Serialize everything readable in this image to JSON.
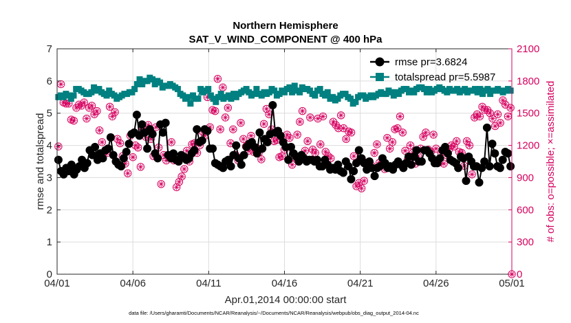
{
  "chart_data": {
    "type": "line",
    "title": "Northern Hemisphere",
    "subtitle": "SAT_V_WIND_COMPONENT @ 400 hPa",
    "xlabel": "Apr.01,2014 00:00:00 start",
    "ylabel_left": "rmse and totalspread",
    "ylabel_right": "# of obs: o=possible; ×=assimilated",
    "footer": "data file: /Users/gharamti/Documents/NCAR/Reanalysis/~/Documents/NCAR/Reanalysis/webpub/obs_diag_output_2014-04.nc",
    "x_range": [
      0,
      30
    ],
    "x_tick_values": [
      0,
      5,
      10,
      15,
      20,
      25,
      30
    ],
    "x_tick_labels": [
      "04/01",
      "04/06",
      "04/11",
      "04/16",
      "04/21",
      "04/26",
      "05/01"
    ],
    "ylim_left": [
      0,
      7
    ],
    "y_left_ticks": [
      0,
      1,
      2,
      3,
      4,
      5,
      6,
      7
    ],
    "ylim_right": [
      0,
      2100
    ],
    "y_right_ticks": [
      0,
      300,
      600,
      900,
      1200,
      1500,
      1800,
      2100
    ],
    "grid": true,
    "legend_position": "top-right",
    "colors": {
      "rmse": "#000000",
      "totalspread": "#008080",
      "obs": "#d6005f",
      "axis": "#262626",
      "grid": "#dcdcdc"
    },
    "series": [
      {
        "name": "rmse pr=3.6824",
        "axis": "left",
        "values": [
          3.55,
          3.2,
          3.1,
          3.3,
          3.2,
          3.4,
          3.1,
          3.25,
          3.35,
          3.55,
          3.3,
          3.45,
          3.85,
          3.7,
          3.95,
          3.55,
          3.75,
          3.6,
          3.85,
          3.9,
          4.25,
          3.7,
          3.5,
          3.4,
          3.35,
          3.6,
          3.8,
          4.05,
          4.35,
          4.4,
          4.95,
          4.3,
          4.65,
          4.4,
          3.9,
          4.5,
          4.35,
          3.75,
          3.6,
          4.65,
          4.4,
          4.7,
          3.7,
          3.6,
          3.75,
          3.55,
          3.5,
          3.7,
          3.65,
          3.55,
          3.6,
          3.75,
          3.85,
          4.5,
          4.1,
          4.15,
          4.5,
          4.45,
          3.9,
          3.9,
          3.45,
          3.4,
          3.35,
          3.3,
          3.5,
          3.55,
          3.35,
          3.7,
          4.0,
          3.6,
          3.4,
          3.7,
          3.95,
          4.05,
          4.1,
          3.95,
          3.75,
          4.4,
          3.9,
          4.2,
          4.1,
          4.35,
          5.25,
          4.4,
          4.45,
          4.3,
          4.1,
          3.95,
          3.55,
          3.95,
          3.75,
          3.65,
          3.5,
          3.7,
          3.6,
          3.5,
          3.55,
          3.55,
          3.5,
          3.55,
          3.35,
          3.35,
          3.55,
          3.4,
          3.25,
          3.3,
          3.25,
          3.4,
          3.2,
          3.15,
          3.5,
          3.35,
          2.95,
          3.2,
          3.45,
          3.85,
          3.6,
          3.45,
          3.25,
          3.5,
          3.3,
          3.05,
          3.3,
          3.35,
          3.6,
          3.45,
          3.3,
          3.35,
          3.25,
          3.4,
          3.5,
          3.4,
          3.3,
          3.45,
          3.65,
          3.4,
          3.65,
          3.85,
          3.5,
          3.5,
          3.85,
          3.85,
          3.75,
          3.6,
          3.45,
          3.45,
          3.6,
          3.85,
          3.95,
          3.75,
          3.55,
          3.5,
          3.45,
          3.3,
          3.65,
          3.6,
          2.9,
          3.65,
          3.5,
          3.35,
          3.35,
          2.85,
          3.3,
          3.5,
          4.55,
          3.35,
          4.05,
          3.75,
          3.35,
          3.3,
          3.55,
          3.8,
          3.75,
          3.35
        ]
      },
      {
        "name": "totalspread pr=5.5987",
        "axis": "left",
        "values": [
          5.5,
          5.55,
          5.5,
          5.6,
          5.55,
          5.45,
          5.55,
          5.75,
          5.75,
          5.7,
          5.65,
          5.6,
          5.6,
          5.65,
          5.8,
          5.7,
          5.75,
          5.65,
          5.6,
          5.55,
          5.7,
          5.6,
          5.55,
          5.45,
          5.5,
          5.55,
          5.6,
          5.6,
          5.65,
          5.65,
          5.75,
          5.9,
          6.05,
          5.9,
          6.0,
          6.0,
          6.1,
          6.05,
          5.9,
          6.0,
          5.95,
          5.8,
          5.85,
          5.85,
          5.9,
          5.85,
          5.8,
          5.75,
          5.6,
          5.55,
          5.45,
          5.5,
          5.3,
          5.55,
          5.45,
          5.45,
          5.75,
          5.65,
          5.7,
          5.75,
          5.55,
          5.45,
          5.35,
          5.5,
          5.6,
          5.45,
          5.5,
          5.55,
          5.45,
          5.6,
          5.5,
          5.6,
          5.65,
          5.7,
          5.75,
          5.65,
          5.55,
          5.6,
          5.75,
          5.6,
          5.55,
          5.65,
          5.6,
          5.65,
          5.75,
          5.7,
          5.55,
          5.6,
          5.7,
          5.65,
          5.75,
          5.8,
          5.65,
          5.85,
          5.7,
          5.65,
          5.8,
          5.75,
          5.75,
          5.7,
          5.6,
          5.55,
          5.7,
          5.75,
          5.6,
          5.55,
          5.65,
          5.45,
          5.5,
          5.4,
          5.45,
          5.55,
          5.6,
          5.6,
          5.5,
          5.45,
          5.3,
          5.35,
          5.5,
          5.55,
          5.55,
          5.45,
          5.5,
          5.55,
          5.5,
          5.55,
          5.6,
          5.65,
          5.6,
          5.6,
          5.7,
          5.65,
          5.55,
          5.65,
          5.6,
          5.7,
          5.75,
          5.75,
          5.65,
          5.7,
          5.65,
          5.75,
          5.8,
          5.8,
          5.75,
          5.65,
          5.75,
          5.65,
          5.7,
          5.75,
          5.8,
          5.75,
          5.7,
          5.65,
          5.75,
          5.7,
          5.7,
          5.75,
          5.65,
          5.7,
          5.75,
          5.65,
          5.7,
          5.7,
          5.75,
          5.65,
          5.75,
          5.6,
          5.7,
          5.75,
          5.6,
          5.7,
          5.7,
          5.75,
          5.7,
          5.65,
          5.7,
          5.75,
          5.7
        ]
      },
      {
        "name": "possible",
        "axis": "right",
        "values": [
          1190,
          1770,
          1600,
          1590,
          1590,
          1440,
          1430,
          1550,
          1580,
          1570,
          1600,
          1450,
          1550,
          1570,
          1490,
          1520,
          1340,
          1230,
          1140,
          1130,
          1560,
          1470,
          1510,
          1260,
          1220,
          1100,
          1030,
          940,
          1290,
          1090,
          1200,
          1180,
          1000,
          1360,
          1280,
          1390,
          1260,
          1100,
          1370,
          1180,
          840,
          1110,
          1060,
          1110,
          1230,
          1060,
          810,
          860,
          910,
          980,
          1150,
          1050,
          1210,
          1220,
          1130,
          1200,
          1330,
          1290,
          1650,
          1370,
          1530,
          1520,
          1820,
          1350,
          1740,
          1460,
          1550,
          1220,
          1350,
          1110,
          1060,
          1410,
          1260,
          1190,
          1150,
          1290,
          1140,
          1180,
          1130,
          1070,
          1400,
          1540,
          1490,
          1350,
          1240,
          1250,
          1090,
          1100,
          1160,
          1300,
          1270,
          1020,
          1090,
          1300,
          1420,
          1520,
          1150,
          1240,
          1460,
          1160,
          1130,
          1450,
          1210,
          1470,
          1140,
          1100,
          1080,
          1420,
          1390,
          1360,
          1480,
          1360,
          1260,
          1330,
          1320,
          1100,
          820,
          850,
          800,
          870,
          1040,
          1000,
          1010,
          1130,
          1210,
          1040,
          1030,
          980,
          1270,
          1170,
          1230,
          1350,
          1360,
          1470,
          1320,
          1150,
          1070,
          1200,
          1130,
          1030,
          1100,
          1170,
          1280,
          1320,
          1160,
          1140,
          1300,
          1170,
          1040,
          1130,
          1030,
          1110,
          1160,
          1200,
          1190,
          1240,
          1140,
          1130,
          1010,
          1240,
          1200,
          930,
          1460,
          1490,
          1470,
          1560,
          1530,
          1530,
          1500,
          1450,
          1380,
          1490,
          1410,
          1620,
          1580,
          1470,
          1550,
          0
        ]
      }
    ]
  }
}
